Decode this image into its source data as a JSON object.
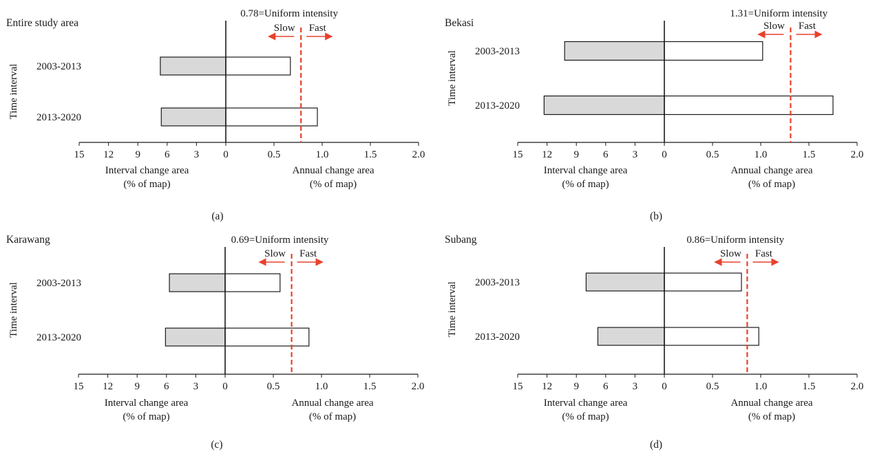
{
  "figure": {
    "interval_label": "Time interval",
    "left_axis_title": [
      "Interval change area",
      "(% of map)"
    ],
    "right_axis_title": [
      "Annual change area",
      "(% of map)"
    ],
    "slow_label": "Slow",
    "fast_label": "Fast",
    "uniform_suffix": "=Uniform intensity",
    "colors": {
      "interval_bar_fill": "#d9d9d9",
      "annual_bar_fill": "#ffffff",
      "bar_stroke": "#1a1a1a",
      "uniform_line": "#e8412c",
      "arrow": "#e8412c"
    }
  },
  "chart_data": [
    {
      "type": "bar",
      "orientation": "horizontal",
      "panel_label": "(a)",
      "title": "Entire study area",
      "categories": [
        "2003-2013",
        "2013-2020"
      ],
      "left_axis": {
        "ticks": [
          "15",
          "12",
          "9",
          "6",
          "3",
          "0"
        ],
        "range": [
          15,
          0
        ]
      },
      "right_axis": {
        "ticks": [
          "0.5",
          "1.0",
          "1.5",
          "2.0"
        ],
        "range": [
          0,
          2.0
        ]
      },
      "series": [
        {
          "name": "Interval change area",
          "values": [
            6.7,
            6.6
          ]
        },
        {
          "name": "Annual change area",
          "values": [
            0.67,
            0.95
          ]
        }
      ],
      "uniform_intensity": {
        "value": 0.78,
        "label": "0.78"
      }
    },
    {
      "type": "bar",
      "orientation": "horizontal",
      "panel_label": "(b)",
      "title": "Bekasi",
      "categories": [
        "2003-2013",
        "2013-2020"
      ],
      "left_axis": {
        "ticks": [
          "15",
          "12",
          "9",
          "6",
          "3",
          "0"
        ],
        "range": [
          15,
          0
        ]
      },
      "right_axis": {
        "ticks": [
          "0.5",
          "1.0",
          "1.5",
          "2.0"
        ],
        "range": [
          0,
          2.0
        ]
      },
      "series": [
        {
          "name": "Interval change area",
          "values": [
            10.2,
            12.3
          ]
        },
        {
          "name": "Annual change area",
          "values": [
            1.02,
            1.75
          ]
        }
      ],
      "uniform_intensity": {
        "value": 1.31,
        "label": "1.31"
      }
    },
    {
      "type": "bar",
      "orientation": "horizontal",
      "panel_label": "(c)",
      "title": "Karawang",
      "categories": [
        "2003-2013",
        "2013-2020"
      ],
      "left_axis": {
        "ticks": [
          "15",
          "12",
          "9",
          "6",
          "3",
          "0"
        ],
        "range": [
          15,
          0
        ]
      },
      "right_axis": {
        "ticks": [
          "0.5",
          "1.0",
          "1.5",
          "2.0"
        ],
        "range": [
          0,
          2.0
        ]
      },
      "series": [
        {
          "name": "Interval change area",
          "values": [
            5.7,
            6.1
          ]
        },
        {
          "name": "Annual change area",
          "values": [
            0.57,
            0.87
          ]
        }
      ],
      "uniform_intensity": {
        "value": 0.69,
        "label": "0.69"
      }
    },
    {
      "type": "bar",
      "orientation": "horizontal",
      "panel_label": "(d)",
      "title": "Subang",
      "categories": [
        "2003-2013",
        "2013-2020"
      ],
      "left_axis": {
        "ticks": [
          "15",
          "12",
          "9",
          "6",
          "3",
          "0"
        ],
        "range": [
          15,
          0
        ]
      },
      "right_axis": {
        "ticks": [
          "0.5",
          "1.0",
          "1.5",
          "2.0"
        ],
        "range": [
          0,
          2.0
        ]
      },
      "series": [
        {
          "name": "Interval change area",
          "values": [
            8.0,
            6.8
          ]
        },
        {
          "name": "Annual change area",
          "values": [
            0.8,
            0.98
          ]
        }
      ],
      "uniform_intensity": {
        "value": 0.86,
        "label": "0.86"
      }
    }
  ]
}
